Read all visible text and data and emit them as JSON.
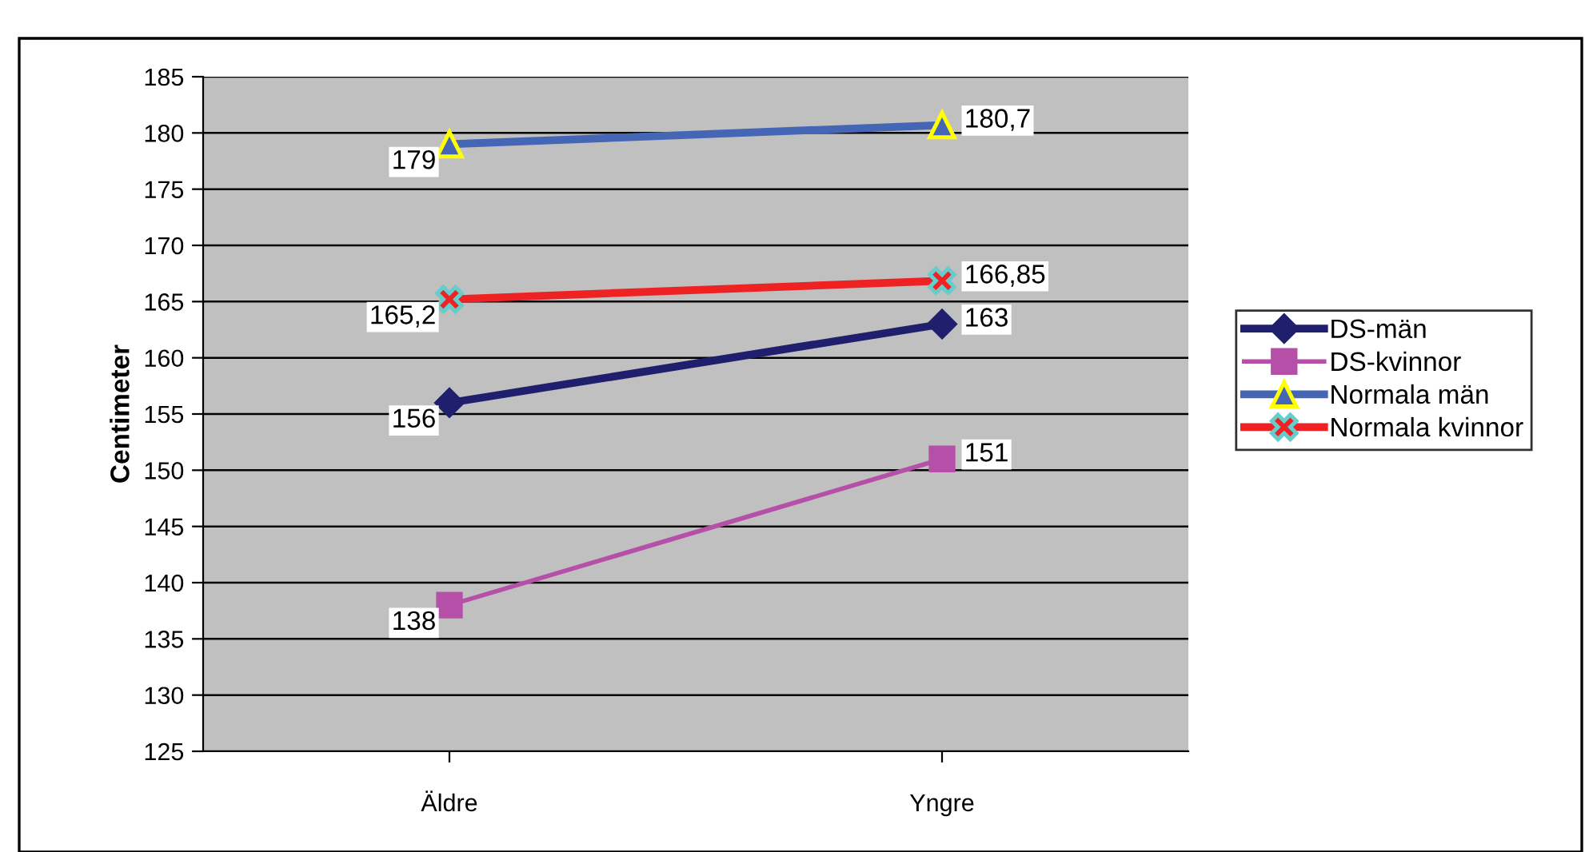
{
  "chart_data": {
    "type": "line",
    "ylabel": "Centimeter",
    "categories": [
      "Äldre",
      "Yngre"
    ],
    "series": [
      {
        "name": "DS-män",
        "color": "#1f1f6e",
        "marker": "diamond",
        "values": [
          156,
          163
        ],
        "value_labels": [
          "156",
          "163"
        ]
      },
      {
        "name": "DS-kvinnor",
        "color": "#b54fa8",
        "marker": "square",
        "values": [
          138,
          151
        ],
        "value_labels": [
          "138",
          "151"
        ]
      },
      {
        "name": "Normala män",
        "color": "#4466b4",
        "marker": "triangle",
        "values": [
          179,
          180.7
        ],
        "value_labels": [
          "179",
          "180,7"
        ]
      },
      {
        "name": "Normala kvinnor",
        "color": "#ee2222",
        "marker": "cross",
        "values": [
          165.2,
          166.85
        ],
        "value_labels": [
          "165,2",
          "166,85"
        ]
      }
    ],
    "ylim": [
      125,
      185
    ],
    "yticks": [
      125,
      130,
      135,
      140,
      145,
      150,
      155,
      160,
      165,
      170,
      175,
      180,
      185
    ],
    "grid": "y",
    "legend": "right"
  }
}
